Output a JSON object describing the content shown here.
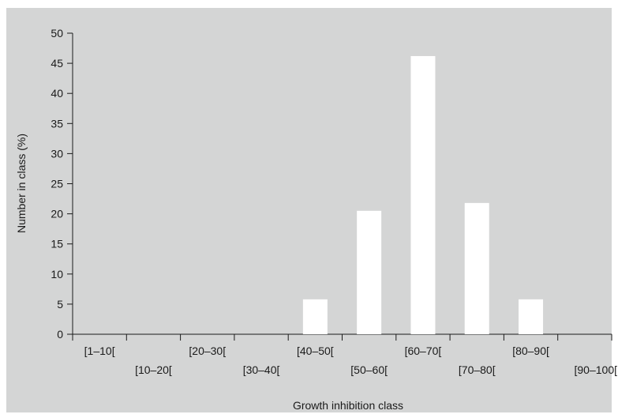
{
  "chart_data": {
    "type": "bar",
    "categories": [
      "[1–10[",
      "[10–20[",
      "[20–30[",
      "[30–40[",
      "[40–50[",
      "[50–60[",
      "[60–70[",
      "[70–80[",
      "[80–90[",
      "[90–100["
    ],
    "values": [
      0,
      0,
      0,
      0,
      5.8,
      20.5,
      46.2,
      21.8,
      5.8,
      0
    ],
    "title": "",
    "xlabel": "Growth inhibition class",
    "ylabel": "Number in class (%)",
    "ylim": [
      0,
      50
    ],
    "yticks": [
      0,
      5,
      10,
      15,
      20,
      25,
      30,
      35,
      40,
      45,
      50
    ],
    "grid": false,
    "colors": {
      "panel_background": "#d4d5d5",
      "bar_fill": "#ffffff",
      "axis": "#1a1a1a"
    }
  }
}
